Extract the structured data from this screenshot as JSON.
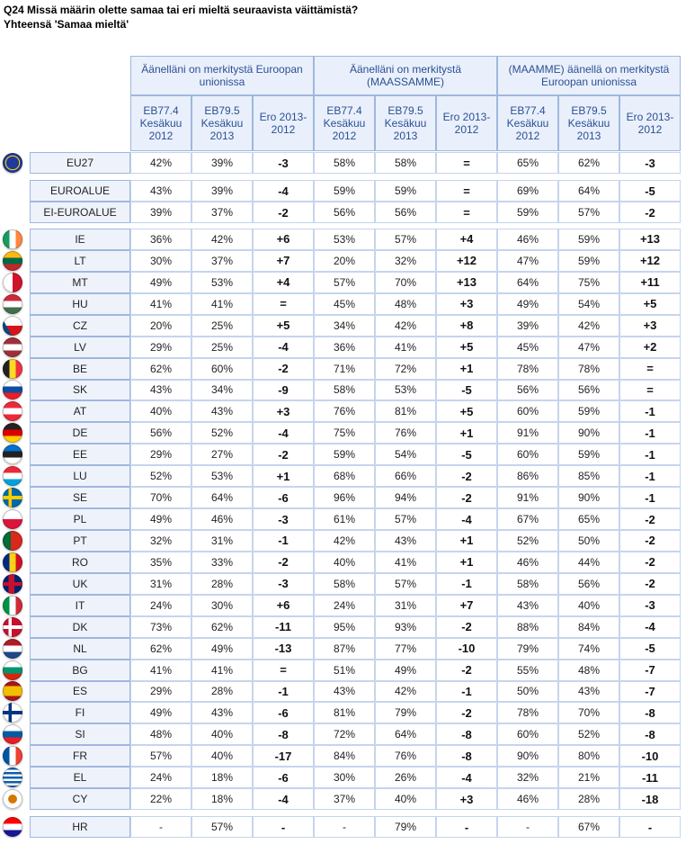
{
  "title": "Q24 Missä määrin olette samaa tai eri mieltä seuraavista väittämistä?",
  "subtitle": "Yhteensä 'Samaa mieltä'",
  "table": {
    "groups": [
      "Äänelläni on merkitystä Euroopan unionissa",
      "Äänelläni on merkitystä (MAASSAMME)",
      "(MAAMME) äänellä on merkitystä Euroopan unionissa"
    ],
    "subheaders": [
      "EB77.4 Kesäkuu 2012",
      "EB79.5 Kesäkuu 2013",
      "Ero 2013-2012",
      "EB77.4 Kesäkuu 2012",
      "EB79.5 Kesäkuu 2013",
      "Ero 2013-2012",
      "EB77.4 Kesäkuu 2012",
      "EB79.5 Kesäkuu 2013",
      "Ero 2013-2012"
    ],
    "sections": [
      {
        "rows": [
          {
            "label": "EU27",
            "values": [
              "42%",
              "39%",
              "-3",
              "58%",
              "58%",
              "=",
              "65%",
              "62%",
              "-3"
            ]
          }
        ]
      },
      {
        "rows": [
          {
            "label": "EUROALUE",
            "values": [
              "43%",
              "39%",
              "-4",
              "59%",
              "59%",
              "=",
              "69%",
              "64%",
              "-5"
            ]
          },
          {
            "label": "EI-EUROALUE",
            "values": [
              "39%",
              "37%",
              "-2",
              "56%",
              "56%",
              "=",
              "59%",
              "57%",
              "-2"
            ]
          }
        ]
      },
      {
        "rows": [
          {
            "label": "IE",
            "values": [
              "36%",
              "42%",
              "+6",
              "53%",
              "57%",
              "+4",
              "46%",
              "59%",
              "+13"
            ]
          },
          {
            "label": "LT",
            "values": [
              "30%",
              "37%",
              "+7",
              "20%",
              "32%",
              "+12",
              "47%",
              "59%",
              "+12"
            ]
          },
          {
            "label": "MT",
            "values": [
              "49%",
              "53%",
              "+4",
              "57%",
              "70%",
              "+13",
              "64%",
              "75%",
              "+11"
            ]
          },
          {
            "label": "HU",
            "values": [
              "41%",
              "41%",
              "=",
              "45%",
              "48%",
              "+3",
              "49%",
              "54%",
              "+5"
            ]
          },
          {
            "label": "CZ",
            "values": [
              "20%",
              "25%",
              "+5",
              "34%",
              "42%",
              "+8",
              "39%",
              "42%",
              "+3"
            ]
          },
          {
            "label": "LV",
            "values": [
              "29%",
              "25%",
              "-4",
              "36%",
              "41%",
              "+5",
              "45%",
              "47%",
              "+2"
            ]
          },
          {
            "label": "BE",
            "values": [
              "62%",
              "60%",
              "-2",
              "71%",
              "72%",
              "+1",
              "78%",
              "78%",
              "="
            ]
          },
          {
            "label": "SK",
            "values": [
              "43%",
              "34%",
              "-9",
              "58%",
              "53%",
              "-5",
              "56%",
              "56%",
              "="
            ]
          },
          {
            "label": "AT",
            "values": [
              "40%",
              "43%",
              "+3",
              "76%",
              "81%",
              "+5",
              "60%",
              "59%",
              "-1"
            ]
          },
          {
            "label": "DE",
            "values": [
              "56%",
              "52%",
              "-4",
              "75%",
              "76%",
              "+1",
              "91%",
              "90%",
              "-1"
            ]
          },
          {
            "label": "EE",
            "values": [
              "29%",
              "27%",
              "-2",
              "59%",
              "54%",
              "-5",
              "60%",
              "59%",
              "-1"
            ]
          },
          {
            "label": "LU",
            "values": [
              "52%",
              "53%",
              "+1",
              "68%",
              "66%",
              "-2",
              "86%",
              "85%",
              "-1"
            ]
          },
          {
            "label": "SE",
            "values": [
              "70%",
              "64%",
              "-6",
              "96%",
              "94%",
              "-2",
              "91%",
              "90%",
              "-1"
            ]
          },
          {
            "label": "PL",
            "values": [
              "49%",
              "46%",
              "-3",
              "61%",
              "57%",
              "-4",
              "67%",
              "65%",
              "-2"
            ]
          },
          {
            "label": "PT",
            "values": [
              "32%",
              "31%",
              "-1",
              "42%",
              "43%",
              "+1",
              "52%",
              "50%",
              "-2"
            ]
          },
          {
            "label": "RO",
            "values": [
              "35%",
              "33%",
              "-2",
              "40%",
              "41%",
              "+1",
              "46%",
              "44%",
              "-2"
            ]
          },
          {
            "label": "UK",
            "values": [
              "31%",
              "28%",
              "-3",
              "58%",
              "57%",
              "-1",
              "58%",
              "56%",
              "-2"
            ]
          },
          {
            "label": "IT",
            "values": [
              "24%",
              "30%",
              "+6",
              "24%",
              "31%",
              "+7",
              "43%",
              "40%",
              "-3"
            ]
          },
          {
            "label": "DK",
            "values": [
              "73%",
              "62%",
              "-11",
              "95%",
              "93%",
              "-2",
              "88%",
              "84%",
              "-4"
            ]
          },
          {
            "label": "NL",
            "values": [
              "62%",
              "49%",
              "-13",
              "87%",
              "77%",
              "-10",
              "79%",
              "74%",
              "-5"
            ]
          },
          {
            "label": "BG",
            "values": [
              "41%",
              "41%",
              "=",
              "51%",
              "49%",
              "-2",
              "55%",
              "48%",
              "-7"
            ]
          },
          {
            "label": "ES",
            "values": [
              "29%",
              "28%",
              "-1",
              "43%",
              "42%",
              "-1",
              "50%",
              "43%",
              "-7"
            ]
          },
          {
            "label": "FI",
            "values": [
              "49%",
              "43%",
              "-6",
              "81%",
              "79%",
              "-2",
              "78%",
              "70%",
              "-8"
            ]
          },
          {
            "label": "SI",
            "values": [
              "48%",
              "40%",
              "-8",
              "72%",
              "64%",
              "-8",
              "60%",
              "52%",
              "-8"
            ]
          },
          {
            "label": "FR",
            "values": [
              "57%",
              "40%",
              "-17",
              "84%",
              "76%",
              "-8",
              "90%",
              "80%",
              "-10"
            ]
          },
          {
            "label": "EL",
            "values": [
              "24%",
              "18%",
              "-6",
              "30%",
              "26%",
              "-4",
              "32%",
              "21%",
              "-11"
            ]
          },
          {
            "label": "CY",
            "values": [
              "22%",
              "18%",
              "-4",
              "37%",
              "40%",
              "+3",
              "46%",
              "28%",
              "-18"
            ]
          }
        ]
      },
      {
        "rows": [
          {
            "label": "HR",
            "values": [
              "-",
              "57%",
              "-",
              "-",
              "79%",
              "-",
              "-",
              "67%",
              "-"
            ]
          }
        ]
      }
    ]
  }
}
